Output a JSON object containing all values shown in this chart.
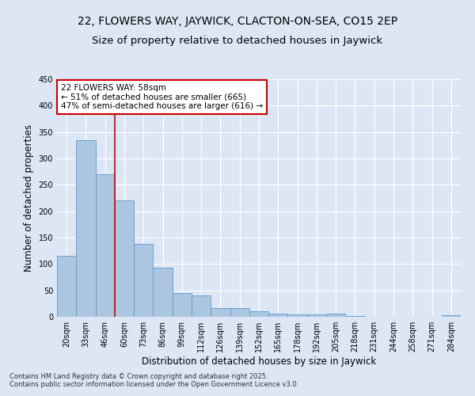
{
  "title": "22, FLOWERS WAY, JAYWICK, CLACTON-ON-SEA, CO15 2EP",
  "subtitle": "Size of property relative to detached houses in Jaywick",
  "xlabel": "Distribution of detached houses by size in Jaywick",
  "ylabel": "Number of detached properties",
  "categories": [
    "20sqm",
    "33sqm",
    "46sqm",
    "60sqm",
    "73sqm",
    "86sqm",
    "99sqm",
    "112sqm",
    "126sqm",
    "139sqm",
    "152sqm",
    "165sqm",
    "178sqm",
    "192sqm",
    "205sqm",
    "218sqm",
    "231sqm",
    "244sqm",
    "258sqm",
    "271sqm",
    "284sqm"
  ],
  "values": [
    115,
    335,
    270,
    220,
    138,
    93,
    45,
    40,
    17,
    16,
    10,
    6,
    5,
    5,
    6,
    1,
    0,
    0,
    0,
    0,
    3
  ],
  "bar_color": "#adc6e0",
  "bar_edge_color": "#5b9bd5",
  "background_color": "#dce6f5",
  "grid_color": "#ffffff",
  "ylim": [
    0,
    450
  ],
  "yticks": [
    0,
    50,
    100,
    150,
    200,
    250,
    300,
    350,
    400,
    450
  ],
  "annotation_text": "22 FLOWERS WAY: 58sqm\n← 51% of detached houses are smaller (665)\n47% of semi-detached houses are larger (616) →",
  "vline_x": 2.5,
  "annotation_box_color": "#ffffff",
  "annotation_border_color": "#cc0000",
  "footer_text": "Contains HM Land Registry data © Crown copyright and database right 2025.\nContains public sector information licensed under the Open Government Licence v3.0.",
  "title_fontsize": 10,
  "subtitle_fontsize": 9.5,
  "axis_label_fontsize": 8.5,
  "tick_fontsize": 7,
  "annotation_fontsize": 7.5,
  "footer_fontsize": 6
}
